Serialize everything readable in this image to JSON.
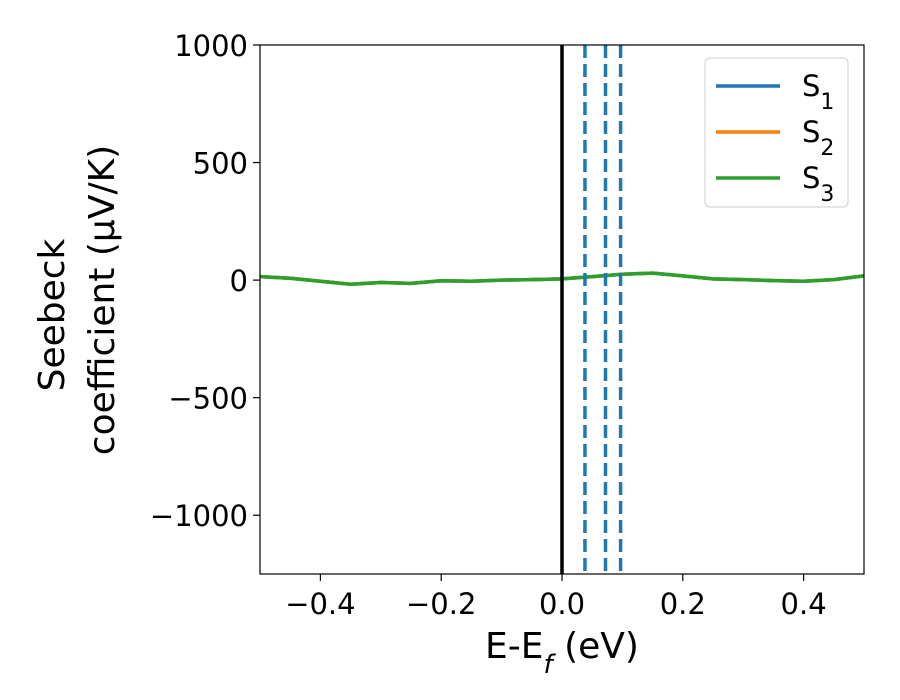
{
  "chart_data": {
    "type": "line",
    "xlabel_main": "E-E",
    "xlabel_sub": "f",
    "xlabel_unit": " (eV)",
    "ylabel_line1": "Seebeck",
    "ylabel_line2": "coefficient  (μV/K)",
    "xlim": [
      -0.5,
      0.5
    ],
    "ylim": [
      -1250,
      1000
    ],
    "xticks": [
      -0.4,
      -0.2,
      0.0,
      0.2,
      0.4
    ],
    "xtick_labels": [
      "−0.4",
      "−0.2",
      "0.0",
      "0.2",
      "0.4"
    ],
    "yticks": [
      1000,
      500,
      0,
      -500,
      -1000
    ],
    "ytick_labels": [
      "1000",
      "500",
      "0",
      "−500",
      "−1000"
    ],
    "grid": false,
    "legend_position": "top-right",
    "x": [
      -0.5,
      -0.45,
      -0.4,
      -0.35,
      -0.3,
      -0.25,
      -0.2,
      -0.15,
      -0.1,
      -0.05,
      0.0,
      0.05,
      0.1,
      0.15,
      0.2,
      0.25,
      0.3,
      0.35,
      0.4,
      0.45,
      0.5
    ],
    "series": [
      {
        "name": "S",
        "sub": "1",
        "color": "#1f77b4",
        "values": [
          15,
          8,
          -5,
          -18,
          -10,
          -14,
          -3,
          -5,
          0,
          2,
          5,
          15,
          25,
          30,
          18,
          5,
          2,
          -2,
          -5,
          2,
          18
        ]
      },
      {
        "name": "S",
        "sub": "2",
        "color": "#ff7f0e",
        "values": [
          15,
          8,
          -5,
          -18,
          -10,
          -14,
          -3,
          -5,
          0,
          2,
          5,
          15,
          25,
          30,
          18,
          5,
          2,
          -2,
          -5,
          2,
          18
        ]
      },
      {
        "name": "S",
        "sub": "3",
        "color": "#2ca02c",
        "values": [
          15,
          8,
          -5,
          -18,
          -10,
          -14,
          -3,
          -5,
          0,
          2,
          5,
          15,
          25,
          30,
          18,
          5,
          2,
          -2,
          -5,
          2,
          18
        ]
      }
    ],
    "vlines": [
      {
        "x": 0.0,
        "color": "#000000",
        "style": "solid"
      },
      {
        "x": 0.038,
        "color": "#1f77b4",
        "style": "dashed"
      },
      {
        "x": 0.072,
        "color": "#1f77b4",
        "style": "dashed"
      },
      {
        "x": 0.097,
        "color": "#1f77b4",
        "style": "dashed"
      }
    ]
  }
}
